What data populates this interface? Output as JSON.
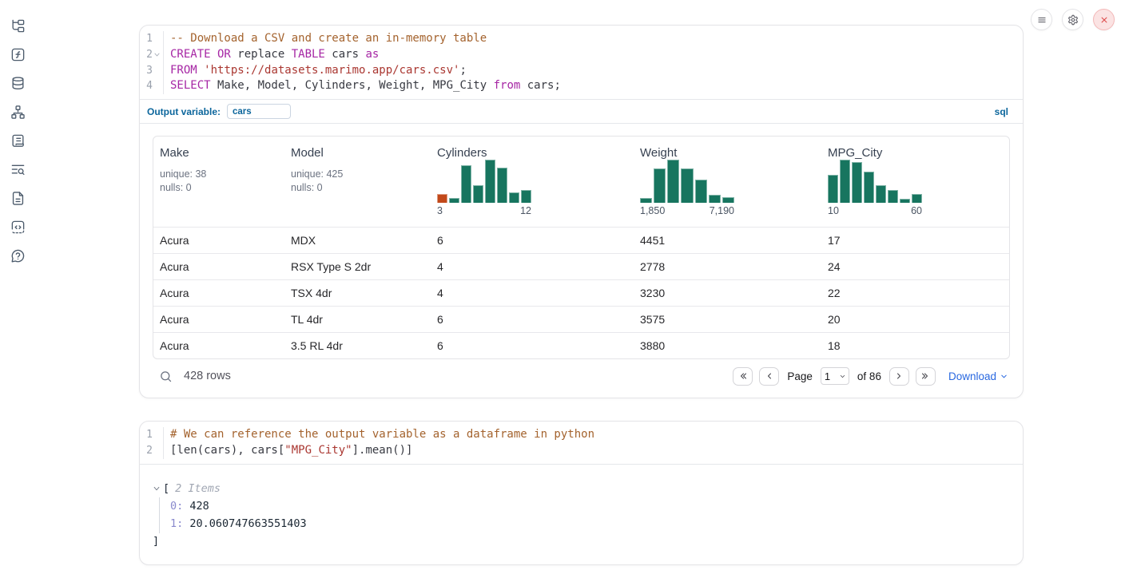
{
  "colors": {
    "accent_blue": "#0c669c",
    "link_blue": "#2968e0",
    "hist_teal": "#17755f",
    "hist_orange": "#c2491a",
    "close_red": "#dd4a4a",
    "keyword": "#a626a4",
    "comment": "#a4632e",
    "string": "#aa3731",
    "code_text": "#383a42",
    "tree_key": "#8a8acd"
  },
  "topbar": {
    "buttons": [
      {
        "name": "menu"
      },
      {
        "name": "settings"
      },
      {
        "name": "close"
      }
    ]
  },
  "sidebar": {
    "items": [
      {
        "name": "file-explorer",
        "icon": "file-tree"
      },
      {
        "name": "variables",
        "icon": "function-square"
      },
      {
        "name": "datasources",
        "icon": "database"
      },
      {
        "name": "dependencies",
        "icon": "network"
      },
      {
        "name": "scratchpad",
        "icon": "scroll-text"
      },
      {
        "name": "logs",
        "icon": "text-search"
      },
      {
        "name": "documentation",
        "icon": "file-text"
      },
      {
        "name": "snippets",
        "icon": "code-square"
      },
      {
        "name": "help",
        "icon": "message-question"
      }
    ]
  },
  "sql_cell": {
    "lines": [
      {
        "num": "1",
        "fold": false,
        "tokens": [
          [
            "com",
            "-- Download a CSV and create an in-memory table"
          ]
        ]
      },
      {
        "num": "2",
        "fold": true,
        "tokens": [
          [
            "kw",
            "CREATE OR"
          ],
          [
            "id",
            " replace "
          ],
          [
            "kw",
            "TABLE"
          ],
          [
            "id",
            " cars "
          ],
          [
            "kw",
            "as"
          ]
        ]
      },
      {
        "num": "3",
        "fold": false,
        "tokens": [
          [
            "kw",
            "FROM"
          ],
          [
            "id",
            " "
          ],
          [
            "str",
            "'https://datasets.marimo.app/cars.csv'"
          ],
          [
            "id",
            ";"
          ]
        ]
      },
      {
        "num": "4",
        "fold": false,
        "tokens": [
          [
            "kw",
            "SELECT"
          ],
          [
            "id",
            " Make, Model, Cylinders, Weight, MPG_City "
          ],
          [
            "kw",
            "from"
          ],
          [
            "id",
            " cars;"
          ]
        ]
      }
    ],
    "output_variable": {
      "label": "Output variable:",
      "value": "cars"
    },
    "language_badge": "sql",
    "table": {
      "columns": [
        {
          "title": "Make",
          "stats": [
            "unique: 38",
            "nulls: 0"
          ]
        },
        {
          "title": "Model",
          "stats": [
            "unique: 425",
            "nulls: 0"
          ]
        },
        {
          "title": "Cylinders",
          "chart": 0
        },
        {
          "title": "Weight",
          "chart": 1
        },
        {
          "title": "MPG_City",
          "chart": 2
        }
      ],
      "rows": [
        [
          "Acura",
          "MDX",
          "6",
          "4451",
          "17"
        ],
        [
          "Acura",
          "RSX Type S 2dr",
          "4",
          "2778",
          "24"
        ],
        [
          "Acura",
          "TSX 4dr",
          "4",
          "3230",
          "22"
        ],
        [
          "Acura",
          "TL 4dr",
          "6",
          "3575",
          "20"
        ],
        [
          "Acura",
          "3.5 RL 4dr",
          "6",
          "3880",
          "18"
        ]
      ],
      "footer": {
        "row_count": "428 rows",
        "page_label": "Page",
        "page_value": "1",
        "of_text": "of 86",
        "download_label": "Download"
      }
    }
  },
  "chart_data": [
    {
      "type": "histogram",
      "column": "Cylinders",
      "x_min_label": "3",
      "x_max_label": "12",
      "x_range": [
        3,
        12
      ],
      "relative_heights_pct": [
        20,
        12,
        88,
        42,
        100,
        82,
        24,
        30
      ],
      "bar_color": "#17755f",
      "first_bar_color": "#c2491a"
    },
    {
      "type": "histogram",
      "column": "Weight",
      "x_min_label": "1,850",
      "x_max_label": "7,190",
      "x_range": [
        1850,
        7190
      ],
      "relative_heights_pct": [
        12,
        80,
        100,
        80,
        55,
        18,
        13
      ],
      "bar_color": "#17755f"
    },
    {
      "type": "histogram",
      "column": "MPG_City",
      "x_min_label": "10",
      "x_max_label": "60",
      "x_range": [
        10,
        60
      ],
      "relative_heights_pct": [
        65,
        100,
        95,
        72,
        42,
        30,
        10,
        20
      ],
      "bar_color": "#17755f"
    }
  ],
  "python_cell": {
    "lines": [
      {
        "num": "1",
        "fold": false,
        "tokens": [
          [
            "com",
            "# We can reference the output variable as a dataframe in python"
          ]
        ]
      },
      {
        "num": "2",
        "fold": false,
        "tokens": [
          [
            "id",
            "[len(cars), cars["
          ],
          [
            "str",
            "\"MPG_City\""
          ],
          [
            "id",
            "].mean()]"
          ]
        ]
      }
    ],
    "output_tree": {
      "open_bracket": "[",
      "items_label": "2 Items",
      "entries": [
        {
          "key": "0:",
          "value": "428"
        },
        {
          "key": "1:",
          "value": "20.060747663551403"
        }
      ],
      "close_bracket": "]"
    }
  }
}
